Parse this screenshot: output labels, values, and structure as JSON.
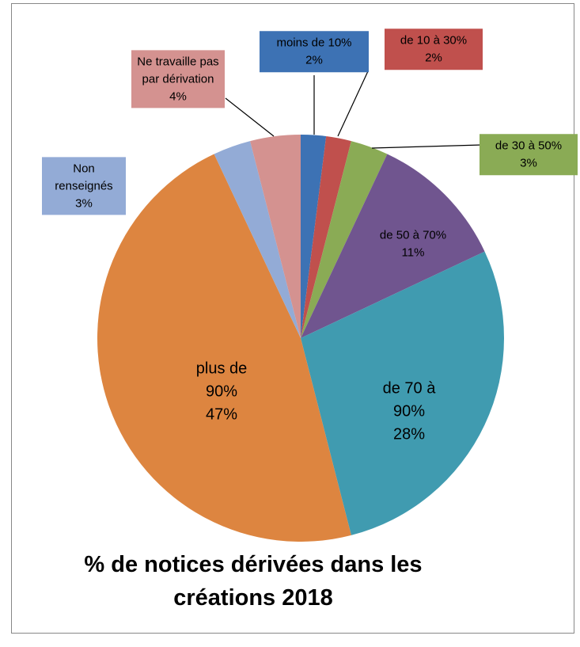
{
  "chart_data": {
    "type": "pie",
    "title": "% de notices dérivées dans les créations 2018",
    "categories": [
      "moins de 10%",
      "de 10 à 30%",
      "de 30 à 50%",
      "de 50 à 70%",
      "de 70 à 90%",
      "plus de 90%",
      "Non renseignés",
      "Ne travaille pas par dérivation"
    ],
    "values": [
      2,
      2,
      3,
      11,
      28,
      47,
      3,
      4
    ],
    "value_labels": [
      "2%",
      "2%",
      "3%",
      "11%",
      "28%",
      "47%",
      "3%",
      "4%"
    ],
    "colors": [
      "#3d72b4",
      "#c0504d",
      "#8aab55",
      "#70558f",
      "#409bb0",
      "#dd8540",
      "#93abd6",
      "#d49290"
    ]
  }
}
